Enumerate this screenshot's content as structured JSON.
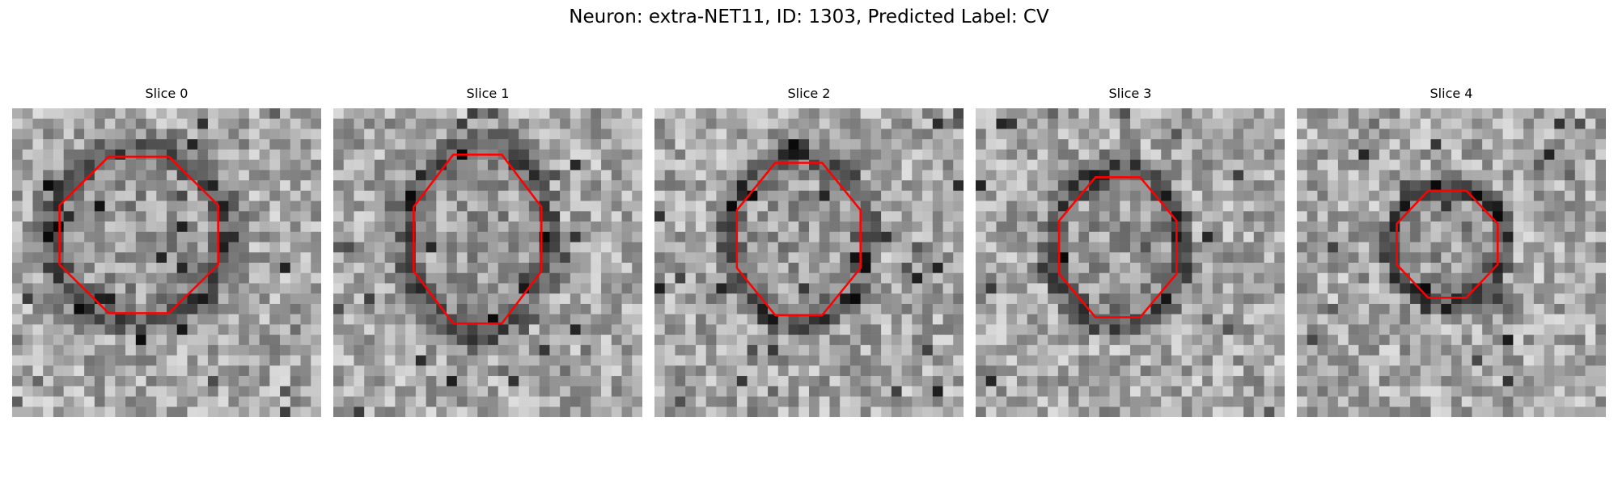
{
  "figure": {
    "title": "Neuron: extra-NET11, ID: 1303, Predicted Label: CV"
  },
  "colors": {
    "contour": "#ff0000",
    "background": "#ffffff"
  },
  "slices": [
    {
      "title": "Slice 0"
    },
    {
      "title": "Slice 1"
    },
    {
      "title": "Slice 2"
    },
    {
      "title": "Slice 3"
    },
    {
      "title": "Slice 4"
    }
  ]
}
